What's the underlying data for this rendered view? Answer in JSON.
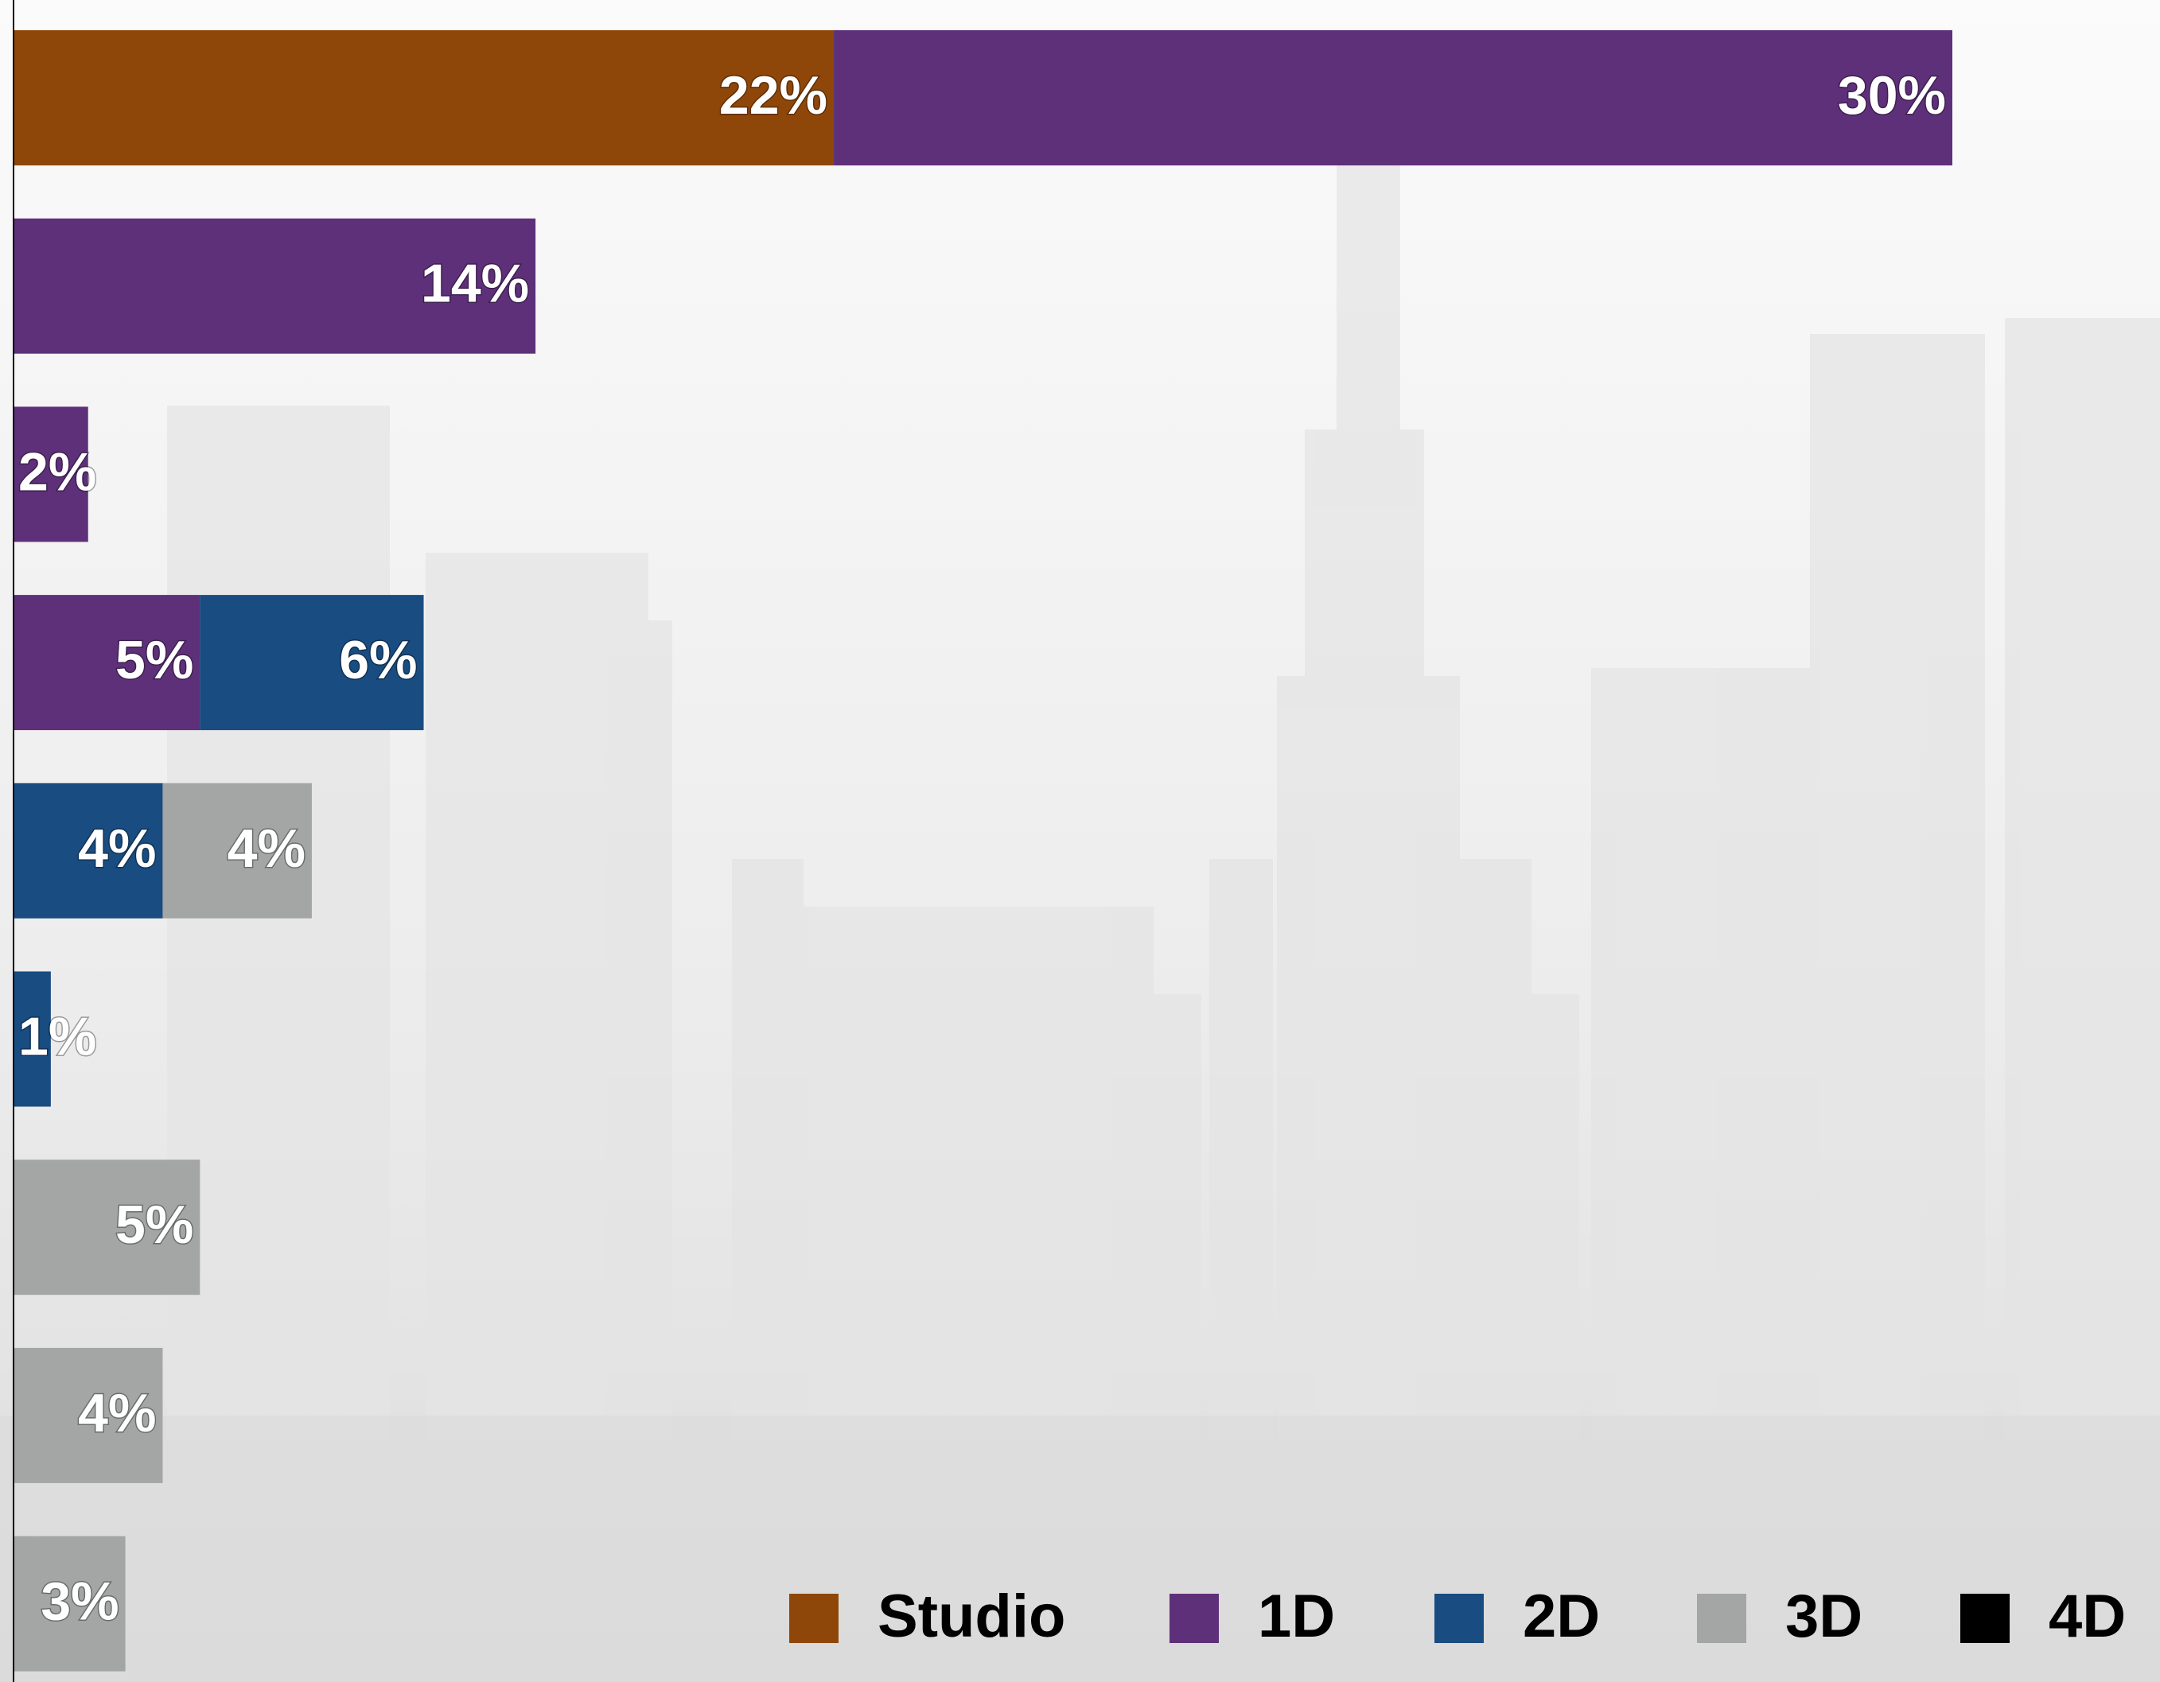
{
  "chart_data": {
    "type": "stacked-bar-horizontal",
    "categories": [
      null,
      null,
      null,
      null,
      null,
      null,
      null,
      null,
      null
    ],
    "series": [
      {
        "name": "Studio",
        "color": "#8f4709",
        "values": [
          22,
          null,
          null,
          null,
          null,
          null,
          null,
          null,
          null
        ],
        "value_labels": [
          "22%",
          null,
          null,
          null,
          null,
          null,
          null,
          null,
          null
        ]
      },
      {
        "name": "1D",
        "color": "#5e3079",
        "values": [
          30,
          14,
          2,
          5,
          null,
          null,
          null,
          null,
          null
        ],
        "value_labels": [
          "30%",
          "14%",
          "2%",
          "5%",
          null,
          null,
          null,
          null,
          null
        ]
      },
      {
        "name": "2D",
        "color": "#194c80",
        "values": [
          null,
          null,
          null,
          6,
          4,
          1,
          null,
          null,
          null
        ],
        "value_labels": [
          null,
          null,
          null,
          "6%",
          "4%",
          "1%",
          null,
          null,
          null
        ]
      },
      {
        "name": "3D",
        "color": "#a4a6a5",
        "values": [
          null,
          null,
          null,
          null,
          4,
          null,
          5,
          4,
          3
        ],
        "value_labels": [
          null,
          null,
          null,
          null,
          "4%",
          null,
          "5%",
          "4%",
          "3%"
        ]
      },
      {
        "name": "4D",
        "color": "#000000",
        "values": [
          null,
          null,
          null,
          null,
          null,
          null,
          null,
          null,
          null
        ],
        "value_labels": [
          null,
          null,
          null,
          null,
          null,
          null,
          null,
          null,
          null
        ]
      }
    ],
    "legend": "bottom-right"
  }
}
